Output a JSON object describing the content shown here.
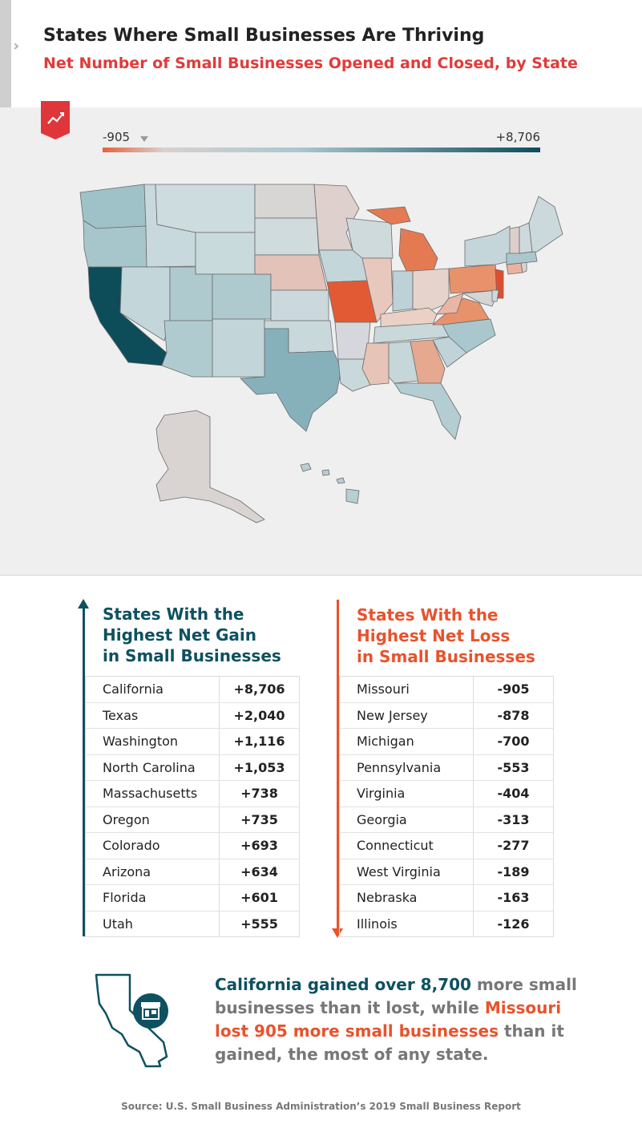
{
  "header": {
    "title": "States Where Small Businesses Are Thriving",
    "subtitle": "Net Number of Small Businesses Opened and Closed, by State"
  },
  "legend": {
    "min_label": "-905",
    "max_label": "+8,706",
    "low_color": "#e8613c",
    "high_color": "#0d4d5a"
  },
  "icons": {
    "chevron": "chevron-right-icon",
    "ribbon": "trend-chart-icon",
    "california_store": "storefront-icon"
  },
  "chart_data": [
    {
      "type": "table",
      "title": "States With the Highest Net Gain in Small Businesses",
      "color": "#0e5160",
      "rows": [
        {
          "state": "California",
          "value": "+8,706"
        },
        {
          "state": "Texas",
          "value": "+2,040"
        },
        {
          "state": "Washington",
          "value": "+1,116"
        },
        {
          "state": "North Carolina",
          "value": "+1,053"
        },
        {
          "state": "Massachusetts",
          "value": "+738"
        },
        {
          "state": "Oregon",
          "value": "+735"
        },
        {
          "state": "Colorado",
          "value": "+693"
        },
        {
          "state": "Arizona",
          "value": "+634"
        },
        {
          "state": "Florida",
          "value": "+601"
        },
        {
          "state": "Utah",
          "value": "+555"
        }
      ]
    },
    {
      "type": "table",
      "title": "States With the Highest Net Loss in Small Businesses",
      "color": "#e8532c",
      "rows": [
        {
          "state": "Missouri",
          "value": "-905"
        },
        {
          "state": "New Jersey",
          "value": "-878"
        },
        {
          "state": "Michigan",
          "value": "-700"
        },
        {
          "state": "Pennsylvania",
          "value": "-553"
        },
        {
          "state": "Virginia",
          "value": "-404"
        },
        {
          "state": "Georgia",
          "value": "-313"
        },
        {
          "state": "Connecticut",
          "value": "-277"
        },
        {
          "state": "West Virginia",
          "value": "-189"
        },
        {
          "state": "Nebraska",
          "value": "-163"
        },
        {
          "state": "Illinois",
          "value": "-126"
        }
      ]
    }
  ],
  "gain_heading": {
    "line1": "States With the",
    "line2": "Highest Net Gain",
    "line3": "in Small Businesses"
  },
  "loss_heading": {
    "line1": "States With the",
    "line2": "Highest Net Loss",
    "line3": "in Small Businesses"
  },
  "summary": {
    "part1": "California gained over 8,700",
    "part2": " more small businesses than it lost, while ",
    "part3": "Missouri lost 905 more small businesses",
    "part4": " than it gained, the most of any state."
  },
  "source": "Source: U.S. Small Business Administration’s 2019 Small Business Report"
}
